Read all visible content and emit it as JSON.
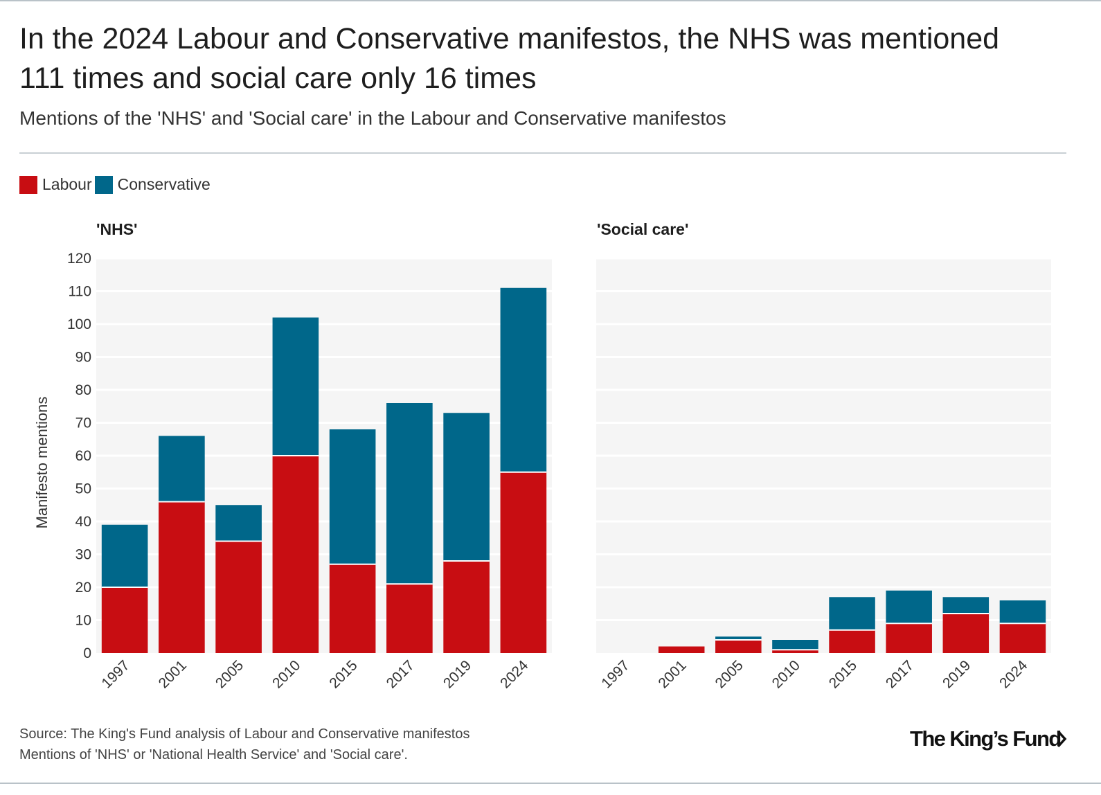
{
  "header": {
    "title": "In the 2024 Labour and Conservative manifestos, the NHS was mentioned 111 times and social care only 16 times",
    "subtitle": "Mentions of the 'NHS' and 'Social care' in the Labour and Conservative manifestos"
  },
  "legend": [
    {
      "label": "Labour",
      "color": "#c80d12"
    },
    {
      "label": "Conservative",
      "color": "#00678a"
    }
  ],
  "chart_data": [
    {
      "type": "bar",
      "stacked": true,
      "title": "'NHS'",
      "ylabel": "Manifesto mentions",
      "xlabel": "",
      "categories": [
        "1997",
        "2001",
        "2005",
        "2010",
        "2015",
        "2017",
        "2019",
        "2024"
      ],
      "series": [
        {
          "name": "Labour",
          "color": "#c80d12",
          "values": [
            20,
            46,
            34,
            60,
            27,
            21,
            28,
            55
          ]
        },
        {
          "name": "Conservative",
          "color": "#00678a",
          "values": [
            19,
            20,
            11,
            42,
            41,
            55,
            45,
            56
          ]
        }
      ],
      "ylim": [
        0,
        120
      ],
      "yticks": [
        0,
        10,
        20,
        30,
        40,
        50,
        60,
        70,
        80,
        90,
        100,
        110,
        120
      ],
      "grid": true
    },
    {
      "type": "bar",
      "stacked": true,
      "title": "'Social care'",
      "ylabel": "",
      "xlabel": "",
      "categories": [
        "1997",
        "2001",
        "2005",
        "2010",
        "2015",
        "2017",
        "2019",
        "2024"
      ],
      "series": [
        {
          "name": "Labour",
          "color": "#c80d12",
          "values": [
            0,
            2,
            4,
            1,
            7,
            9,
            12,
            9
          ]
        },
        {
          "name": "Conservative",
          "color": "#00678a",
          "values": [
            0,
            0,
            1,
            3,
            10,
            10,
            5,
            7
          ]
        }
      ],
      "ylim": [
        0,
        120
      ],
      "yticks": [
        0,
        10,
        20,
        30,
        40,
        50,
        60,
        70,
        80,
        90,
        100,
        110,
        120
      ],
      "grid": true
    }
  ],
  "footer": {
    "source_line1": "Source: The King's Fund analysis of Labour and Conservative manifestos",
    "source_line2": "Mentions of 'NHS' or 'National Health Service' and 'Social care'."
  },
  "brand": {
    "name": "The King's Fund"
  }
}
